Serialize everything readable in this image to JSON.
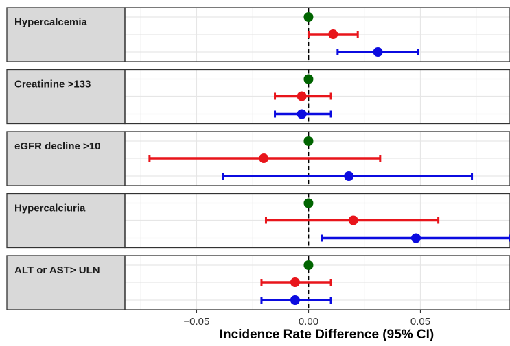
{
  "chart_data": {
    "type": "forest",
    "title": "",
    "xlabel": "Incidence Rate Difference (95% CI)",
    "ylabel": "",
    "xlim": [
      -0.082,
      0.09
    ],
    "x_ticks": [
      -0.05,
      0,
      0.05
    ],
    "x_tick_labels": [
      "−0.05",
      "0.00",
      "0.05"
    ],
    "reference_line": 0,
    "grid": true,
    "colors": {
      "reference": "#006400",
      "group_a": "#e8151b",
      "group_b": "#0b0be0"
    },
    "panels": [
      {
        "label": "Hypercalcemia",
        "rows": [
          {
            "series": "reference",
            "estimate": 0.0,
            "lower": null,
            "upper": null
          },
          {
            "series": "group_a",
            "estimate": 0.011,
            "lower": 0.0,
            "upper": 0.022
          },
          {
            "series": "group_b",
            "estimate": 0.031,
            "lower": 0.013,
            "upper": 0.049
          }
        ]
      },
      {
        "label": "Creatinine >133",
        "rows": [
          {
            "series": "reference",
            "estimate": 0.0,
            "lower": null,
            "upper": null
          },
          {
            "series": "group_a",
            "estimate": -0.003,
            "lower": -0.015,
            "upper": 0.01
          },
          {
            "series": "group_b",
            "estimate": -0.003,
            "lower": -0.015,
            "upper": 0.01
          }
        ]
      },
      {
        "label": "eGFR decline >10",
        "rows": [
          {
            "series": "reference",
            "estimate": 0.0,
            "lower": null,
            "upper": null
          },
          {
            "series": "group_a",
            "estimate": -0.02,
            "lower": -0.071,
            "upper": 0.032
          },
          {
            "series": "group_b",
            "estimate": 0.018,
            "lower": -0.038,
            "upper": 0.073
          }
        ]
      },
      {
        "label": "Hypercalciuria",
        "rows": [
          {
            "series": "reference",
            "estimate": 0.0,
            "lower": null,
            "upper": null
          },
          {
            "series": "group_a",
            "estimate": 0.02,
            "lower": -0.019,
            "upper": 0.058
          },
          {
            "series": "group_b",
            "estimate": 0.048,
            "lower": 0.006,
            "upper": 0.09
          }
        ]
      },
      {
        "label": "ALT or AST> ULN",
        "rows": [
          {
            "series": "reference",
            "estimate": 0.0,
            "lower": null,
            "upper": null
          },
          {
            "series": "group_a",
            "estimate": -0.006,
            "lower": -0.021,
            "upper": 0.01
          },
          {
            "series": "group_b",
            "estimate": -0.006,
            "lower": -0.021,
            "upper": 0.01
          }
        ]
      }
    ]
  }
}
